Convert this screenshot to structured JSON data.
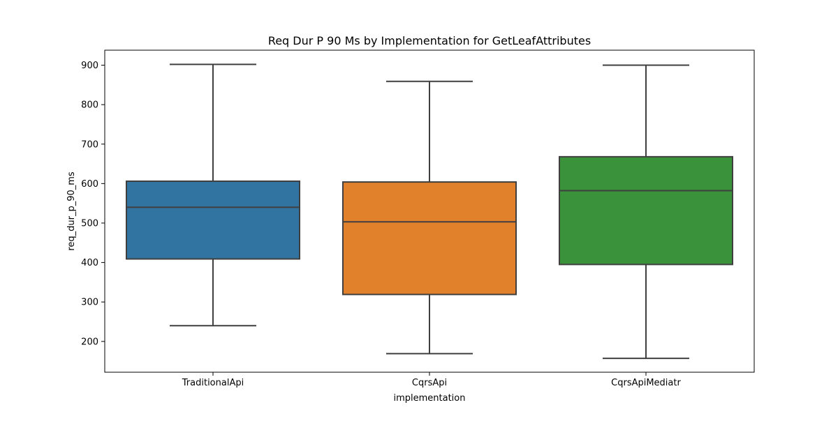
{
  "chart_data": {
    "type": "box",
    "title": "Req Dur P 90 Ms by Implementation for GetLeafAttributes",
    "xlabel": "implementation",
    "ylabel": "req_dur_p_90_ms",
    "ylim": [
      122,
      938
    ],
    "yticks": [
      200,
      300,
      400,
      500,
      600,
      700,
      800,
      900
    ],
    "categories": [
      "TraditionalApi",
      "CqrsApi",
      "CqrsApiMediatr"
    ],
    "boxes": [
      {
        "category": "TraditionalApi",
        "min": 240,
        "q1": 409,
        "median": 540,
        "q3": 606,
        "max": 902,
        "color": "#3274a1"
      },
      {
        "category": "CqrsApi",
        "min": 169,
        "q1": 319,
        "median": 503,
        "q3": 604,
        "max": 859,
        "color": "#e1812c"
      },
      {
        "category": "CqrsApiMediatr",
        "min": 157,
        "q1": 395,
        "median": 582,
        "q3": 668,
        "max": 900,
        "color": "#3a923a"
      }
    ],
    "grid": false,
    "legend": "none"
  }
}
